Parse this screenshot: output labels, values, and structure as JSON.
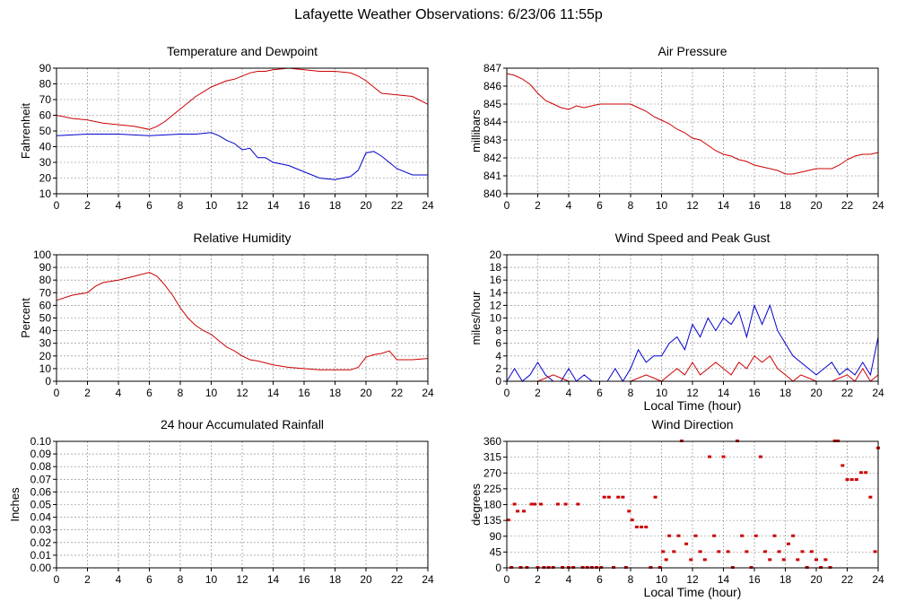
{
  "page_title": "Lafayette Weather Observations: 6/23/06 11:55p",
  "colors": {
    "red": "#cc0000",
    "blue": "#0000cc",
    "grid": "#808080",
    "axis": "#000000"
  },
  "chart_data": [
    {
      "id": "temp",
      "type": "line",
      "title": "Temperature and Dewpoint",
      "xlabel": "",
      "ylabel": "Fahrenheit",
      "xlim": [
        0,
        24
      ],
      "ylim": [
        10,
        90
      ],
      "xticks": [
        0,
        2,
        4,
        6,
        8,
        10,
        12,
        14,
        16,
        18,
        20,
        22,
        24
      ],
      "yticks": [
        10,
        20,
        30,
        40,
        50,
        60,
        70,
        80,
        90
      ],
      "grid": true,
      "series": [
        {
          "color": "#cc0000",
          "x": [
            0,
            1,
            2,
            3,
            4,
            5,
            6,
            6.5,
            7,
            7.5,
            8,
            8.5,
            9,
            9.5,
            10,
            10.5,
            11,
            11.5,
            12,
            12.5,
            13,
            13.5,
            14,
            15,
            16,
            17,
            18,
            19,
            19.5,
            20,
            20.5,
            21,
            22,
            23,
            24
          ],
          "y": [
            60,
            58,
            57,
            55,
            54,
            53,
            51,
            53,
            56,
            60,
            64,
            68,
            72,
            75,
            78,
            80,
            82,
            83,
            85,
            87,
            88,
            88,
            89,
            90,
            89,
            88,
            88,
            87,
            85,
            82,
            78,
            74,
            73,
            72,
            67
          ]
        },
        {
          "color": "#0000cc",
          "x": [
            0,
            2,
            4,
            6,
            8,
            9,
            10,
            10.5,
            11,
            11.5,
            12,
            12.5,
            13,
            13.5,
            14,
            15,
            16,
            17,
            18,
            18.5,
            19,
            19.5,
            20,
            20.5,
            21,
            21.5,
            22,
            23,
            24
          ],
          "y": [
            47,
            48,
            48,
            47,
            48,
            48,
            49,
            47,
            44,
            42,
            38,
            39,
            33,
            33,
            30,
            28,
            24,
            20,
            19,
            20,
            21,
            25,
            36,
            37,
            34,
            30,
            26,
            22,
            22
          ]
        }
      ]
    },
    {
      "id": "pressure",
      "type": "line",
      "title": "Air Pressure",
      "xlabel": "",
      "ylabel": "millibars",
      "xlim": [
        0,
        24
      ],
      "ylim": [
        840,
        847
      ],
      "xticks": [
        0,
        2,
        4,
        6,
        8,
        10,
        12,
        14,
        16,
        18,
        20,
        22,
        24
      ],
      "yticks": [
        840,
        841,
        842,
        843,
        844,
        845,
        846,
        847
      ],
      "grid": true,
      "series": [
        {
          "color": "#cc0000",
          "x": [
            0,
            0.5,
            1,
            1.5,
            2,
            2.5,
            3,
            3.5,
            4,
            4.5,
            5,
            6,
            7,
            8,
            8.5,
            9,
            9.5,
            10,
            10.5,
            11,
            11.5,
            12,
            12.5,
            13,
            13.5,
            14,
            14.5,
            15,
            15.5,
            16,
            16.5,
            17,
            17.5,
            18,
            18.5,
            19,
            19.5,
            20,
            21,
            21.5,
            22,
            22.5,
            23,
            23.5,
            24
          ],
          "y": [
            846.7,
            846.6,
            846.4,
            846.1,
            845.6,
            845.2,
            845.0,
            844.8,
            844.7,
            844.9,
            844.8,
            845.0,
            845.0,
            845.0,
            844.8,
            844.6,
            844.3,
            844.1,
            843.9,
            843.6,
            843.4,
            843.1,
            843.0,
            842.7,
            842.4,
            842.2,
            842.1,
            841.9,
            841.8,
            841.6,
            841.5,
            841.4,
            841.3,
            841.1,
            841.1,
            841.2,
            841.3,
            841.4,
            841.4,
            841.6,
            841.9,
            842.1,
            842.2,
            842.2,
            842.3
          ]
        }
      ]
    },
    {
      "id": "humidity",
      "type": "line",
      "title": "Relative Humidity",
      "xlabel": "",
      "ylabel": "Percent",
      "xlim": [
        0,
        24
      ],
      "ylim": [
        0,
        100
      ],
      "xticks": [
        0,
        2,
        4,
        6,
        8,
        10,
        12,
        14,
        16,
        18,
        20,
        22,
        24
      ],
      "yticks": [
        0,
        10,
        20,
        30,
        40,
        50,
        60,
        70,
        80,
        90,
        100
      ],
      "grid": true,
      "series": [
        {
          "color": "#cc0000",
          "x": [
            0,
            1,
            2,
            2.5,
            3,
            4,
            5,
            6,
            6.5,
            7,
            7.5,
            8,
            8.5,
            9,
            9.5,
            10,
            10.5,
            11,
            11.5,
            12,
            12.5,
            13,
            14,
            15,
            16,
            17,
            18,
            19,
            19.5,
            20,
            20.5,
            21,
            21.5,
            22,
            23,
            24
          ],
          "y": [
            64,
            68,
            70,
            75,
            78,
            80,
            83,
            86,
            83,
            76,
            68,
            58,
            50,
            44,
            40,
            37,
            32,
            27,
            24,
            20,
            17,
            16,
            13,
            11,
            10,
            9,
            9,
            9,
            11,
            19,
            21,
            22,
            24,
            17,
            17,
            18
          ]
        }
      ]
    },
    {
      "id": "wind",
      "type": "line",
      "title": "Wind Speed and Peak Gust",
      "xlabel": "Local Time (hour)",
      "ylabel": "miles/hour",
      "xlim": [
        0,
        24
      ],
      "ylim": [
        0,
        20
      ],
      "xticks": [
        0,
        2,
        4,
        6,
        8,
        10,
        12,
        14,
        16,
        18,
        20,
        22,
        24
      ],
      "yticks": [
        0,
        2,
        4,
        6,
        8,
        10,
        12,
        14,
        16,
        18,
        20
      ],
      "grid": true,
      "series": [
        {
          "color": "#0000cc",
          "x": [
            0,
            0.5,
            1,
            1.5,
            2,
            2.5,
            3,
            3.5,
            4,
            4.5,
            5,
            5.5,
            6,
            6.5,
            7,
            7.5,
            8,
            8.5,
            9,
            9.5,
            10,
            10.5,
            11,
            11.5,
            12,
            12.5,
            13,
            13.5,
            14,
            14.5,
            15,
            15.5,
            16,
            16.5,
            17,
            17.5,
            18,
            18.5,
            19,
            19.5,
            20,
            20.5,
            21,
            21.5,
            22,
            22.5,
            23,
            23.5,
            24
          ],
          "y": [
            0,
            2,
            0,
            1,
            3,
            1,
            0,
            0,
            2,
            0,
            1,
            0,
            0,
            0,
            2,
            0,
            2,
            5,
            3,
            4,
            4,
            6,
            7,
            5,
            9,
            7,
            10,
            8,
            10,
            9,
            11,
            7,
            12,
            9,
            12,
            8,
            6,
            4,
            3,
            2,
            1,
            2,
            3,
            1,
            2,
            1,
            3,
            1,
            7
          ]
        },
        {
          "color": "#cc0000",
          "x": [
            0,
            2,
            3,
            4,
            6,
            7,
            8,
            9,
            10,
            10.5,
            11,
            11.5,
            12,
            12.5,
            13,
            13.5,
            14,
            14.5,
            15,
            15.5,
            16,
            16.5,
            17,
            17.5,
            18,
            18.5,
            19,
            20,
            21,
            22,
            22.5,
            23,
            23.5,
            24
          ],
          "y": [
            0,
            0,
            1,
            0,
            0,
            0,
            0,
            1,
            0,
            1,
            2,
            1,
            3,
            1,
            2,
            3,
            2,
            1,
            3,
            2,
            4,
            3,
            4,
            2,
            1,
            0,
            1,
            0,
            0,
            1,
            0,
            2,
            0,
            1
          ]
        }
      ]
    },
    {
      "id": "rain",
      "type": "line",
      "title": "24 hour Accumulated Rainfall",
      "xlabel": "",
      "ylabel": "Inches",
      "xlim": [
        0,
        24
      ],
      "ylim": [
        0,
        0.1
      ],
      "xticks": [
        0,
        2,
        4,
        6,
        8,
        10,
        12,
        14,
        16,
        18,
        20,
        22,
        24
      ],
      "yticks": [
        "0.00",
        "0.01",
        "0.02",
        "0.03",
        "0.04",
        "0.05",
        "0.06",
        "0.07",
        "0.08",
        "0.09",
        "0.10"
      ],
      "grid": true,
      "series": [
        {
          "color": "#cc0000",
          "x": [
            0,
            24
          ],
          "y": [
            0,
            0
          ]
        }
      ]
    },
    {
      "id": "winddir",
      "type": "scatter",
      "title": "Wind Direction",
      "xlabel": "Local Time (hour)",
      "ylabel": "degrees",
      "xlim": [
        0,
        24
      ],
      "ylim": [
        0,
        360
      ],
      "xticks": [
        0,
        2,
        4,
        6,
        8,
        10,
        12,
        14,
        16,
        18,
        20,
        22,
        24
      ],
      "yticks": [
        0,
        45,
        90,
        135,
        180,
        225,
        270,
        315,
        360
      ],
      "grid": true,
      "series": [
        {
          "color": "#cc0000",
          "x": [
            0.1,
            0.3,
            0.5,
            0.7,
            0.9,
            1.1,
            1.3,
            1.6,
            1.8,
            2.0,
            2.2,
            2.4,
            2.7,
            3.0,
            3.3,
            3.6,
            3.8,
            4.0,
            4.3,
            4.6,
            4.9,
            5.2,
            5.5,
            5.8,
            6.1,
            6.3,
            6.6,
            6.9,
            7.2,
            7.5,
            7.7,
            7.9,
            8.1,
            8.4,
            8.7,
            9.0,
            9.3,
            9.6,
            9.9,
            10.1,
            10.3,
            10.5,
            10.8,
            11.1,
            11.3,
            11.6,
            11.9,
            12.2,
            12.5,
            12.8,
            13.1,
            13.4,
            13.7,
            14.0,
            14.3,
            14.6,
            14.9,
            15.2,
            15.5,
            15.8,
            16.1,
            16.4,
            16.7,
            17.0,
            17.3,
            17.6,
            17.9,
            18.2,
            18.5,
            18.8,
            19.1,
            19.4,
            19.7,
            20.0,
            20.3,
            20.6,
            20.9,
            21.2,
            21.4,
            21.7,
            22.0,
            22.3,
            22.6,
            22.9,
            23.2,
            23.5,
            23.8,
            24.0
          ],
          "y": [
            135,
            0,
            180,
            160,
            0,
            160,
            0,
            180,
            180,
            0,
            180,
            0,
            0,
            0,
            180,
            0,
            180,
            0,
            0,
            180,
            0,
            0,
            0,
            0,
            0,
            200,
            200,
            0,
            200,
            200,
            0,
            160,
            135,
            115,
            115,
            115,
            0,
            200,
            0,
            45,
            22,
            90,
            45,
            90,
            360,
            67,
            22,
            90,
            45,
            22,
            315,
            90,
            45,
            315,
            45,
            0,
            360,
            90,
            45,
            0,
            90,
            315,
            45,
            22,
            90,
            45,
            22,
            67,
            90,
            22,
            45,
            0,
            45,
            22,
            0,
            22,
            0,
            360,
            360,
            290,
            250,
            250,
            250,
            270,
            270,
            200,
            45,
            340
          ]
        }
      ]
    }
  ]
}
